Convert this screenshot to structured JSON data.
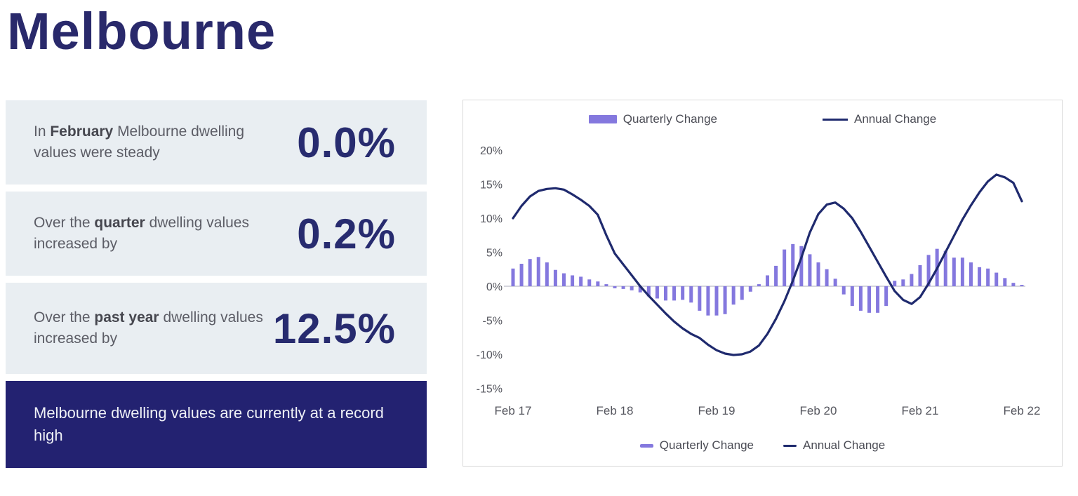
{
  "title": "Melbourne",
  "stats": [
    {
      "prefix": "In ",
      "bold": "February",
      "suffix": " Melbourne dwelling values were steady",
      "value": "0.0%"
    },
    {
      "prefix": "Over the ",
      "bold": "quarter",
      "suffix": " dwelling values increased by",
      "value": "0.2%"
    },
    {
      "prefix": "Over the ",
      "bold": "past year",
      "suffix": " dwelling values increased by",
      "value": "12.5%"
    }
  ],
  "banner": {
    "text": "Melbourne dwelling values are currently at a record high"
  },
  "colors": {
    "title_navy": "#29296b",
    "value_navy": "#272b6f",
    "panel_bg": "#e9eef2",
    "banner_bg": "#232271",
    "bar_purple": "#8478de",
    "line_navy": "#1f2a6e",
    "zero_line": "#d5d5dd",
    "axis_text": "#55565e",
    "card_border": "#d9d9d9"
  },
  "chart_data": {
    "type": "bar+line",
    "title": "",
    "xlabel": "",
    "ylabel": "",
    "ylim": [
      -15,
      20
    ],
    "grid": false,
    "legend_position": "top-and-bottom",
    "x_tick_labels": [
      "Feb 17",
      "Feb 18",
      "Feb 19",
      "Feb 20",
      "Feb 21",
      "Feb 22"
    ],
    "x_tick_indices": [
      0,
      12,
      24,
      36,
      48,
      60
    ],
    "y_ticks": [
      {
        "label": "20%",
        "value": 20
      },
      {
        "label": "15%",
        "value": 15
      },
      {
        "label": "10%",
        "value": 10
      },
      {
        "label": "5%",
        "value": 5
      },
      {
        "label": "0%",
        "value": 0
      },
      {
        "label": "-5%",
        "value": -5
      },
      {
        "label": "-10%",
        "value": -10
      },
      {
        "label": "-15%",
        "value": -15
      }
    ],
    "months": [
      "Feb 17",
      "Mar 17",
      "Apr 17",
      "May 17",
      "Jun 17",
      "Jul 17",
      "Aug 17",
      "Sep 17",
      "Oct 17",
      "Nov 17",
      "Dec 17",
      "Jan 18",
      "Feb 18",
      "Mar 18",
      "Apr 18",
      "May 18",
      "Jun 18",
      "Jul 18",
      "Aug 18",
      "Sep 18",
      "Oct 18",
      "Nov 18",
      "Dec 18",
      "Jan 19",
      "Feb 19",
      "Mar 19",
      "Apr 19",
      "May 19",
      "Jun 19",
      "Jul 19",
      "Aug 19",
      "Sep 19",
      "Oct 19",
      "Nov 19",
      "Dec 19",
      "Jan 20",
      "Feb 20",
      "Mar 20",
      "Apr 20",
      "May 20",
      "Jun 20",
      "Jul 20",
      "Aug 20",
      "Sep 20",
      "Oct 20",
      "Nov 20",
      "Dec 20",
      "Jan 21",
      "Feb 21",
      "Mar 21",
      "Apr 21",
      "May 21",
      "Jun 21",
      "Jul 21",
      "Aug 21",
      "Sep 21",
      "Oct 21",
      "Nov 21",
      "Dec 21",
      "Jan 22",
      "Feb 22"
    ],
    "series": [
      {
        "name": "Quarterly Change",
        "type": "bar",
        "values": [
          2.6,
          3.3,
          4.0,
          4.3,
          3.5,
          2.4,
          1.9,
          1.6,
          1.4,
          1.0,
          0.7,
          0.3,
          -0.3,
          -0.4,
          -0.6,
          -0.9,
          -1.5,
          -1.8,
          -2.1,
          -2.1,
          -2.0,
          -2.4,
          -3.6,
          -4.3,
          -4.3,
          -4.1,
          -2.7,
          -2.0,
          -0.8,
          0.3,
          1.6,
          3.0,
          5.4,
          6.2,
          5.9,
          4.7,
          3.5,
          2.5,
          1.1,
          -1.2,
          -2.9,
          -3.6,
          -3.9,
          -3.9,
          -2.9,
          0.8,
          1.0,
          1.8,
          3.1,
          4.6,
          5.5,
          5.2,
          4.2,
          4.2,
          3.5,
          2.8,
          2.6,
          2.0,
          1.2,
          0.5,
          0.2
        ]
      },
      {
        "name": "Annual Change",
        "type": "line",
        "values": [
          10.0,
          11.8,
          13.2,
          14.0,
          14.3,
          14.4,
          14.2,
          13.5,
          12.7,
          11.8,
          10.5,
          7.5,
          4.8,
          3.2,
          1.6,
          0.0,
          -1.4,
          -2.7,
          -4.0,
          -5.2,
          -6.2,
          -7.0,
          -7.6,
          -8.6,
          -9.4,
          -9.9,
          -10.1,
          -10.0,
          -9.6,
          -8.7,
          -7.0,
          -4.8,
          -2.2,
          0.8,
          4.2,
          7.9,
          10.6,
          12.0,
          12.3,
          11.4,
          10.0,
          8.0,
          5.8,
          3.6,
          1.4,
          -0.7,
          -2.0,
          -2.6,
          -1.6,
          0.4,
          2.6,
          5.0,
          7.4,
          9.8,
          11.9,
          13.8,
          15.4,
          16.4,
          16.0,
          15.2,
          12.5
        ]
      }
    ]
  }
}
